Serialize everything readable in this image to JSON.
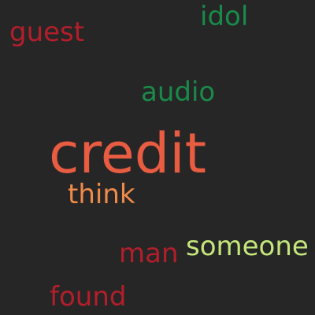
{
  "word_cloud": {
    "background_color": "#262626",
    "words": [
      {
        "id": "credit",
        "text": "credit",
        "color": "#e85c41"
      },
      {
        "id": "guest",
        "text": "guest",
        "color": "#b31e2b"
      },
      {
        "id": "idol",
        "text": "idol",
        "color": "#1a8a4a"
      },
      {
        "id": "audio",
        "text": "audio",
        "color": "#1a8a4a"
      },
      {
        "id": "think",
        "text": "think",
        "color": "#f08a4b"
      },
      {
        "id": "man",
        "text": "man",
        "color": "#b31e2b"
      },
      {
        "id": "someone",
        "text": "someone",
        "color": "#c4e67a"
      },
      {
        "id": "found",
        "text": "found",
        "color": "#b31e2b"
      }
    ]
  }
}
